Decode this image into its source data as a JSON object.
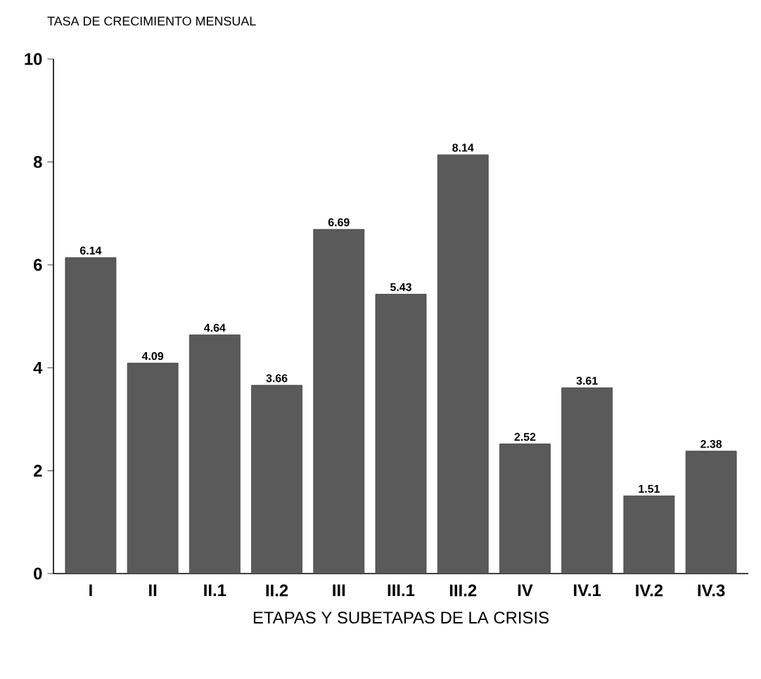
{
  "chart_data": {
    "type": "bar",
    "ylabel": "TASA DE CRECIMIENTO MENSUAL",
    "xlabel": "ETAPAS Y SUBETAPAS DE LA CRISIS",
    "categories": [
      "I",
      "II",
      "II.1",
      "II.2",
      "III",
      "III.1",
      "III.2",
      "IV",
      "IV.1",
      "IV.2",
      "IV.3"
    ],
    "values": [
      6.14,
      4.09,
      4.64,
      3.66,
      6.69,
      5.43,
      8.14,
      2.52,
      3.61,
      1.51,
      2.38
    ],
    "color": "#5a5a5a",
    "ylim": [
      0,
      10
    ],
    "yticks": [
      0,
      2,
      4,
      6,
      8,
      10
    ],
    "data_labels": true
  }
}
